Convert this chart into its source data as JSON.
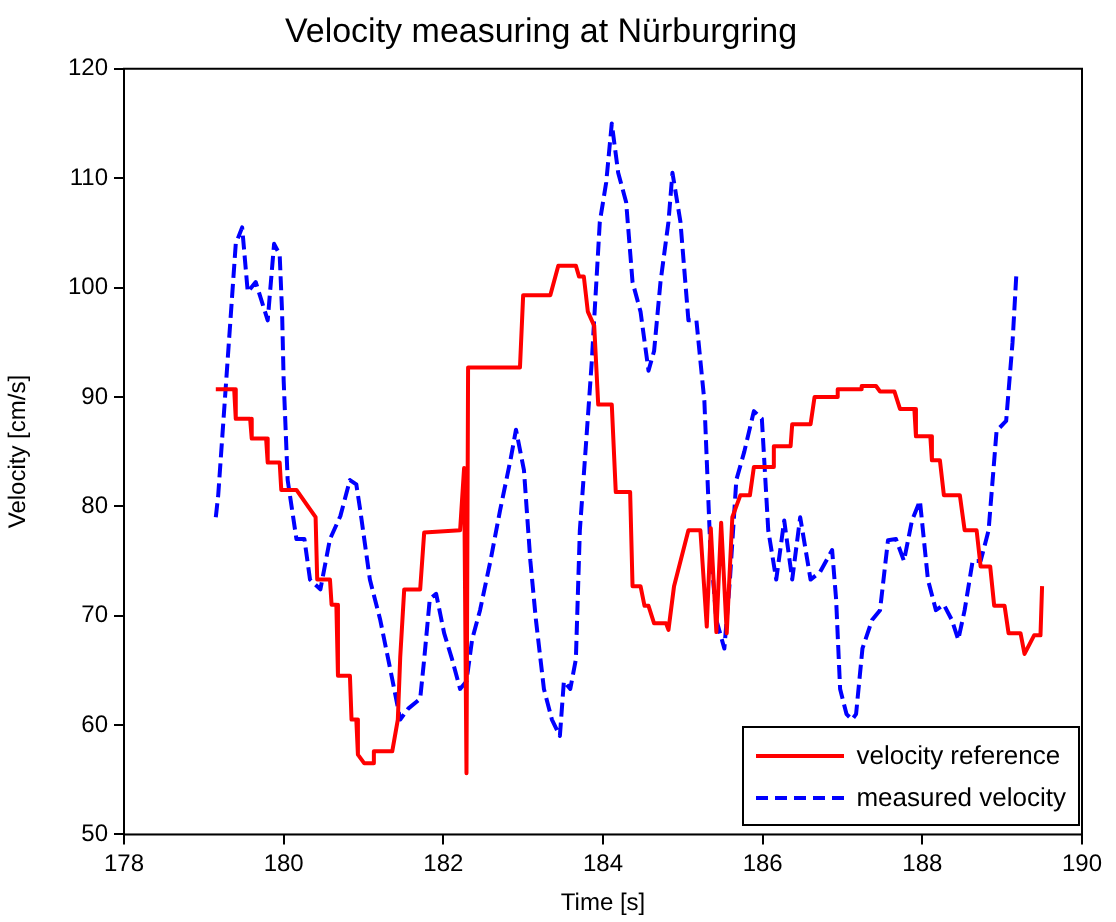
{
  "chart_data": {
    "type": "line",
    "title": "Velocity measuring at Nürburgring",
    "xlabel": "Time [s]",
    "ylabel": "Velocity [cm/s]",
    "xlim": [
      178,
      190
    ],
    "xticks": [
      178,
      180,
      182,
      184,
      186,
      188,
      190
    ],
    "ylim": [
      50,
      120
    ],
    "yticks": [
      50,
      60,
      70,
      80,
      90,
      100,
      110,
      120
    ],
    "legend": "bottom right",
    "grid": false,
    "marker": "none",
    "series": [
      {
        "name": "velocity reference",
        "color": "#ff0000",
        "line_style": "solid",
        "x": [
          179.15,
          179.38,
          179.4,
          179.58,
          179.6,
          179.78,
          179.8,
          179.95,
          179.97,
          180.16,
          180.4,
          180.42,
          180.58,
          180.6,
          180.66,
          180.68,
          180.83,
          180.85,
          180.91,
          180.93,
          181.01,
          181.11,
          181.13,
          181.36,
          181.43,
          181.46,
          181.51,
          181.71,
          181.76,
          182.21,
          182.26,
          182.28,
          182.29,
          182.31,
          182.96,
          183,
          183.34,
          183.44,
          183.66,
          183.7,
          183.76,
          183.81,
          183.89,
          183.94,
          184.11,
          184.16,
          184.34,
          184.37,
          184.47,
          184.52,
          184.57,
          184.64,
          184.79,
          184.82,
          184.89,
          185.07,
          185.22,
          185.3,
          185.35,
          185.42,
          185.48,
          185.55,
          185.62,
          185.72,
          185.84,
          185.89,
          186.12,
          186.14,
          186.35,
          186.37,
          186.6,
          186.65,
          186.92,
          186.94,
          187.22,
          187.24,
          187.42,
          187.47,
          187.65,
          187.72,
          187.9,
          187.92,
          188.1,
          188.12,
          188.22,
          188.27,
          188.47,
          188.53,
          188.68,
          188.73,
          188.85,
          188.9,
          189.03,
          189.08,
          189.23,
          189.28,
          189.4,
          189.48,
          189.5
        ],
        "values": [
          90.7,
          90.7,
          88,
          88,
          86.2,
          86.2,
          84,
          84,
          81.5,
          81.5,
          79,
          73.3,
          73.3,
          71,
          71,
          64.5,
          64.5,
          60.5,
          60.5,
          57.3,
          56.5,
          56.5,
          57.6,
          57.6,
          60.5,
          66.2,
          72.4,
          72.4,
          77.6,
          77.8,
          83.5,
          83.5,
          55.6,
          92.7,
          92.7,
          99.3,
          99.3,
          102,
          102,
          101,
          101,
          97.8,
          96.5,
          89.3,
          89.3,
          81.3,
          81.3,
          72.7,
          72.7,
          70.9,
          70.9,
          69.3,
          69.3,
          68.7,
          72.7,
          77.8,
          77.8,
          69,
          78,
          68.5,
          78.5,
          68.4,
          79,
          81,
          81,
          83.6,
          83.6,
          85.5,
          85.5,
          87.5,
          87.5,
          90,
          90,
          90.7,
          90.7,
          91,
          91,
          90.5,
          90.5,
          88.9,
          88.9,
          86.4,
          86.4,
          84.2,
          84.2,
          81,
          81,
          77.8,
          77.8,
          74.5,
          74.5,
          70.9,
          70.9,
          68.4,
          68.4,
          66.5,
          68.2,
          68.2,
          72.7
        ]
      },
      {
        "name": "measured velocity",
        "color": "#0000ff",
        "line_style": "dashed",
        "x": [
          179.15,
          179.18,
          179.4,
          179.48,
          179.55,
          179.65,
          179.8,
          179.88,
          179.95,
          179.98,
          180,
          180.05,
          180.16,
          180.26,
          180.33,
          180.46,
          180.58,
          180.71,
          180.83,
          180.91,
          180.96,
          181.08,
          181.21,
          181.36,
          181.46,
          181.56,
          181.71,
          181.76,
          181.83,
          181.91,
          182.01,
          182.11,
          182.21,
          182.29,
          182.36,
          182.46,
          182.59,
          182.71,
          182.84,
          182.91,
          183.01,
          183.09,
          183.16,
          183.26,
          183.36,
          183.46,
          183.51,
          183.59,
          183.66,
          183.71,
          183.79,
          183.86,
          183.96,
          184.04,
          184.11,
          184.19,
          184.29,
          184.37,
          184.47,
          184.57,
          184.64,
          184.72,
          184.82,
          184.87,
          184.97,
          185.07,
          185.17,
          185.27,
          185.34,
          185.42,
          185.52,
          185.59,
          185.67,
          185.77,
          185.89,
          185.99,
          186.07,
          186.17,
          186.27,
          186.37,
          186.47,
          186.6,
          186.72,
          186.87,
          186.92,
          186.97,
          187.05,
          187.12,
          187.17,
          187.25,
          187.37,
          187.47,
          187.57,
          187.67,
          187.77,
          187.87,
          187.97,
          188.07,
          188.17,
          188.27,
          188.37,
          188.45,
          188.53,
          188.63,
          188.73,
          188.83,
          188.93,
          189.05,
          189.13,
          189.18
        ],
        "values": [
          79,
          81,
          104,
          105.5,
          99.6,
          100.5,
          97,
          104,
          103,
          97.8,
          91.5,
          82.4,
          77,
          77,
          73.3,
          72.4,
          77,
          79.1,
          82.4,
          82,
          79.6,
          73.3,
          69.6,
          64.2,
          60.5,
          61.5,
          62.4,
          66,
          71.5,
          72,
          68.4,
          66,
          63.3,
          64,
          67.8,
          70.5,
          75,
          79.6,
          84.2,
          87,
          83.3,
          75,
          69.6,
          63.3,
          60.5,
          59,
          64,
          63.3,
          66,
          77.8,
          86,
          93.3,
          106,
          109.6,
          115,
          110.5,
          107.8,
          100.5,
          97.8,
          92.4,
          94.2,
          100.5,
          106,
          110.5,
          106,
          97,
          97,
          89.6,
          76.9,
          69.6,
          67,
          73.3,
          82.4,
          85,
          88.7,
          88,
          77.8,
          73.3,
          78.7,
          73.3,
          79,
          73.3,
          74,
          76,
          71.5,
          63.3,
          61,
          60.5,
          61,
          67,
          69.6,
          70.5,
          76.9,
          77,
          75,
          78.7,
          80.5,
          73.3,
          70.5,
          71,
          69.6,
          67.8,
          70.5,
          75,
          75,
          77.8,
          86.9,
          87.8,
          95,
          101.5
        ]
      }
    ]
  }
}
